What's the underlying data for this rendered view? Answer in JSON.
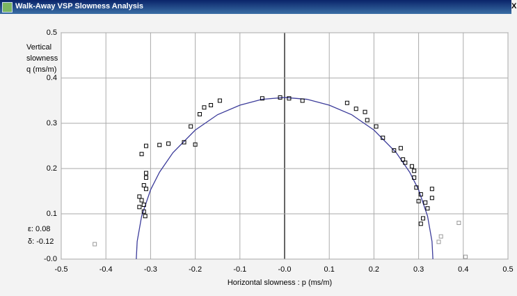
{
  "window": {
    "title": "Walk-Away VSP Slowness Analysis",
    "close": "X"
  },
  "chart_data": {
    "type": "scatter",
    "x_label": "Horizontal slowness : p (ms/m)",
    "y_label": [
      "Vertical",
      "slowness",
      "q (ms/m)"
    ],
    "annotations": [
      "ε: 0.08",
      "δ: -0.12"
    ],
    "xlim": [
      -0.5,
      0.5
    ],
    "ylim": [
      0,
      0.5
    ],
    "xticks": [
      -0.5,
      -0.4,
      -0.3,
      -0.2,
      -0.1,
      {
        "value": 0,
        "label": "-0.0"
      },
      0.1,
      0.2,
      0.3,
      0.4,
      0.5
    ],
    "yticks": [
      {
        "value": 0,
        "label": "-0.0"
      },
      0.1,
      0.2,
      0.3,
      0.4,
      0.5
    ],
    "grid": true,
    "series": [
      {
        "type": "line",
        "color": "#3b3b9a",
        "x": [
          -0.332,
          -0.33,
          -0.32,
          -0.3,
          -0.28,
          -0.25,
          -0.2,
          -0.15,
          -0.1,
          -0.05,
          0,
          0.05,
          0.1,
          0.15,
          0.2,
          0.25,
          0.28,
          0.3,
          0.32,
          0.33,
          0.332
        ],
        "values": [
          0,
          0.039,
          0.095,
          0.153,
          0.192,
          0.235,
          0.285,
          0.319,
          0.34,
          0.353,
          0.357,
          0.353,
          0.34,
          0.319,
          0.285,
          0.235,
          0.192,
          0.153,
          0.095,
          0.039,
          0
        ]
      },
      {
        "type": "scatter",
        "color": "#000000",
        "x": [
          -0.05,
          -0.01,
          0.01,
          0.04,
          0.14,
          0.16,
          0.18,
          0.185,
          0.205,
          0.22,
          0.245,
          0.26,
          0.265,
          0.27,
          0.285,
          0.29,
          0.29,
          0.295,
          0.305,
          0.3,
          0.315,
          0.32,
          0.33,
          0.33,
          0.31,
          0.305,
          -0.145,
          -0.165,
          -0.18,
          -0.19,
          -0.21,
          -0.225,
          -0.2,
          -0.26,
          -0.28,
          -0.31,
          -0.32,
          -0.31,
          -0.31,
          -0.315,
          -0.31,
          -0.325,
          -0.32,
          -0.325,
          -0.315,
          -0.315,
          -0.312
        ],
        "values": [
          0.355,
          0.357,
          0.355,
          0.35,
          0.345,
          0.332,
          0.325,
          0.307,
          0.293,
          0.268,
          0.24,
          0.245,
          0.22,
          0.213,
          0.205,
          0.195,
          0.18,
          0.158,
          0.143,
          0.128,
          0.125,
          0.112,
          0.155,
          0.135,
          0.09,
          0.078,
          0.35,
          0.34,
          0.335,
          0.32,
          0.293,
          0.258,
          0.253,
          0.255,
          0.252,
          0.25,
          0.232,
          0.19,
          0.18,
          0.163,
          0.155,
          0.138,
          0.13,
          0.115,
          0.12,
          0.105,
          0.095
        ]
      },
      {
        "type": "scatter",
        "color": "#999999",
        "x": [
          0.345,
          0.35,
          0.39,
          0.405,
          -0.425
        ],
        "values": [
          0.038,
          0.05,
          0.08,
          0.005,
          0.033
        ]
      }
    ]
  }
}
